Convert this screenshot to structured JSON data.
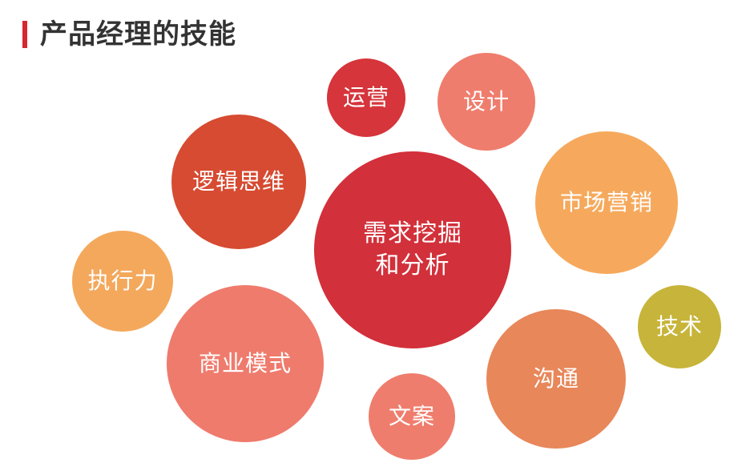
{
  "title": "产品经理的技能",
  "colors": {
    "accent": "#d7262f",
    "title_text": "#333333"
  },
  "bubbles": {
    "center": {
      "label_line1": "需求挖掘",
      "label_line2": "和分析",
      "color": "#d2303a"
    },
    "operations": {
      "label": "运营",
      "color": "#d5353b"
    },
    "design": {
      "label": "设计",
      "color": "#ef7d6d"
    },
    "logical_thinking": {
      "label": "逻辑思维",
      "color": "#d64b32"
    },
    "marketing": {
      "label": "市场营销",
      "color": "#f6a95c"
    },
    "execution": {
      "label": "执行力",
      "color": "#f4a85c"
    },
    "business_model": {
      "label": "商业模式",
      "color": "#ef7b6d"
    },
    "technology": {
      "label": "技术",
      "color": "#c7b43a"
    },
    "communication": {
      "label": "沟通",
      "color": "#e8875a"
    },
    "copywriting": {
      "label": "文案",
      "color": "#ef7d6d"
    }
  }
}
